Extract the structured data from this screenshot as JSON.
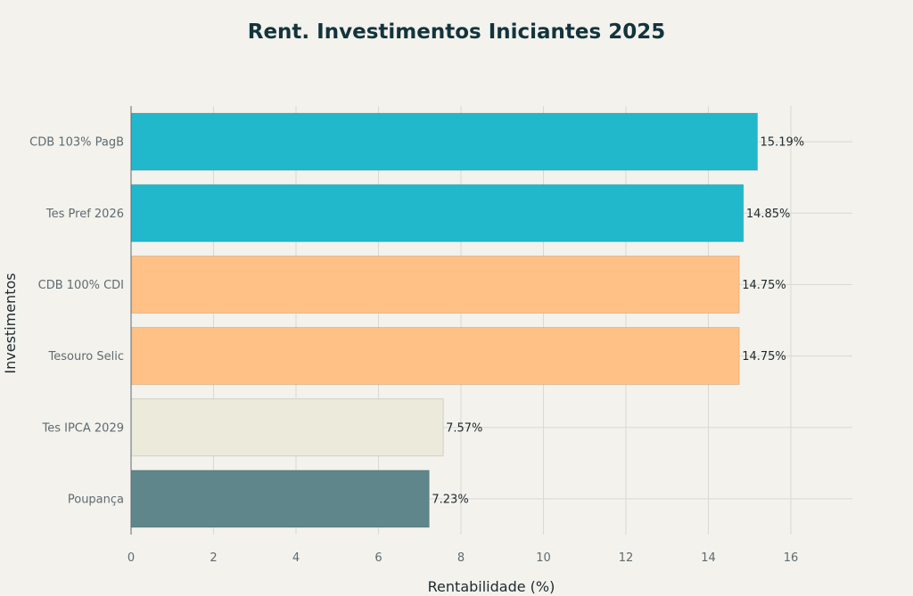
{
  "chart_data": {
    "type": "bar",
    "orientation": "horizontal",
    "title": "Rent. Investimentos Iniciantes 2025",
    "xlabel": "Rentabilidade (%)",
    "ylabel": "Investimentos",
    "xlim": [
      0,
      17.5
    ],
    "xticks": [
      0,
      2,
      4,
      6,
      8,
      10,
      12,
      14,
      16
    ],
    "grid": true,
    "categories": [
      "CDB 103% PagB",
      "Tes Pref 2026",
      "CDB 100% CDI",
      "Tesouro Selic",
      "Tes IPCA 2029",
      "Poupança"
    ],
    "values": [
      15.19,
      14.85,
      14.75,
      14.75,
      7.57,
      7.23
    ],
    "data_labels": [
      "15.19%",
      "14.85%",
      "14.75%",
      "14.75%",
      "7.57%",
      "7.23%"
    ],
    "colors": [
      "#21b8cc",
      "#21b8cc",
      "#ffc185",
      "#ffc185",
      "#eceadb",
      "#5e868b"
    ]
  }
}
